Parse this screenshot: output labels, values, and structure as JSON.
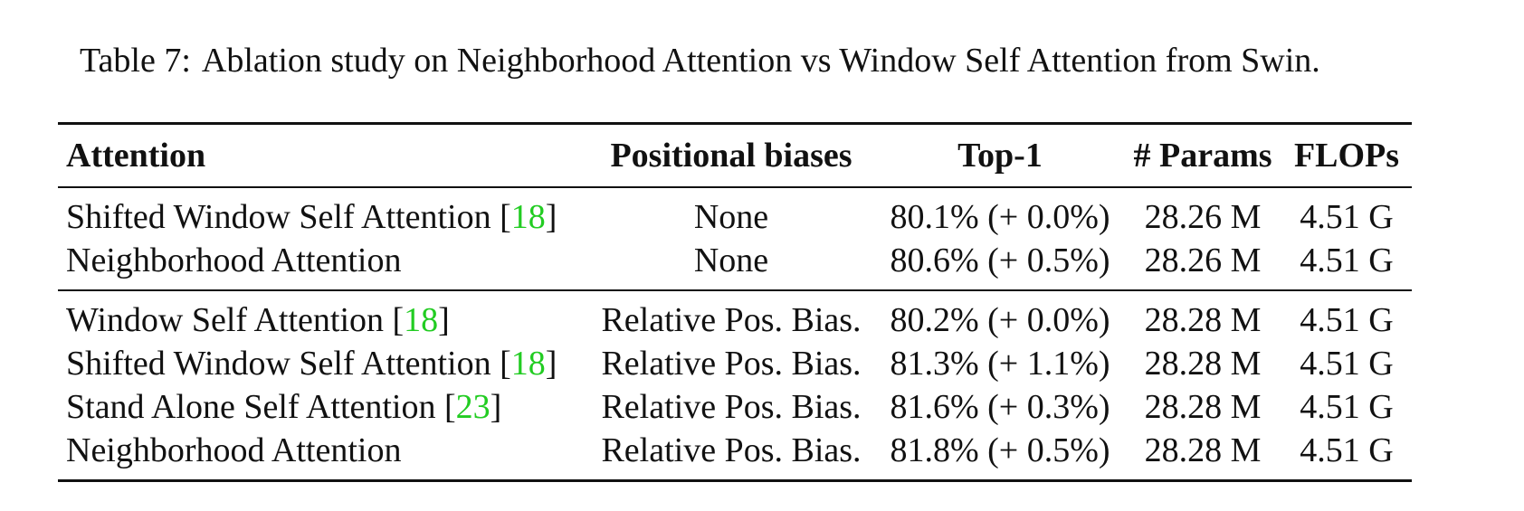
{
  "caption": {
    "label": "Table 7:",
    "text": "Ablation study on Neighborhood Attention vs Window Self Attention from Swin."
  },
  "colors": {
    "citation": "#22cc22",
    "text": "#111111"
  },
  "table": {
    "headers": [
      "Attention",
      "Positional biases",
      "Top-1",
      "# Params",
      "FLOPs"
    ],
    "groups": [
      {
        "rows": [
          {
            "attention": "Shifted Window Self Attention [",
            "ref": "18",
            "close": "]",
            "bias": "None",
            "top1": "80.1% (+ 0.0%)",
            "params": "28.26 M",
            "flops": "4.51 G"
          },
          {
            "attention": "Neighborhood Attention",
            "ref": "",
            "close": "",
            "bias": "None",
            "top1": "80.6% (+ 0.5%)",
            "params": "28.26 M",
            "flops": "4.51 G"
          }
        ]
      },
      {
        "rows": [
          {
            "attention": "Window Self Attention [",
            "ref": "18",
            "close": "]",
            "bias": "Relative Pos. Bias.",
            "top1": "80.2% (+ 0.0%)",
            "params": "28.28 M",
            "flops": "4.51 G"
          },
          {
            "attention": "Shifted Window Self Attention [",
            "ref": "18",
            "close": "]",
            "bias": "Relative Pos. Bias.",
            "top1": "81.3% (+ 1.1%)",
            "params": "28.28 M",
            "flops": "4.51 G"
          },
          {
            "attention": "Stand Alone Self Attention [",
            "ref": "23",
            "close": "]",
            "bias": "Relative Pos. Bias.",
            "top1": "81.6% (+ 0.3%)",
            "params": "28.28 M",
            "flops": "4.51 G"
          },
          {
            "attention": "Neighborhood Attention",
            "ref": "",
            "close": "",
            "bias": "Relative Pos. Bias.",
            "top1": "81.8% (+ 0.5%)",
            "params": "28.28 M",
            "flops": "4.51 G"
          }
        ]
      }
    ]
  }
}
